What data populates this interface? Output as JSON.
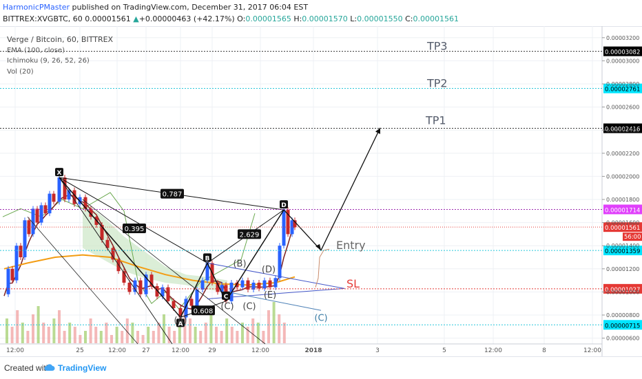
{
  "header": {
    "author": "HarmonicPMaster",
    "published": " published on TradingView.com, December 31, 2017 06:04 EST",
    "symbol": "BITTREX:XVGBTC, 60",
    "last": "0.00001561",
    "change": "+0.00000463 (+42.17%)",
    "o_label": "O:",
    "o": "0.00001565",
    "h_label": "H:",
    "h": "0.00001570",
    "l_label": "L:",
    "l": "0.00001550",
    "c_label": "C:",
    "c": "0.00001561"
  },
  "legend": {
    "title": "Verge / Bitcoin, 60, BITTREX",
    "ema": "EMA (100, close)",
    "ichimoku": "Ichimoku (9, 26, 52, 26)",
    "vol": "Vol (20)"
  },
  "footer": {
    "created": "Created with",
    "brand": "TradingView"
  },
  "colors": {
    "candle_up": "#2962ff",
    "candle_down": "#c62828",
    "ema": "#f39c12",
    "tenkan": "#7b1f1f",
    "chikou": "#6aa84f",
    "cloud": "#cfe8c9",
    "target_line": "#333333",
    "entry_line": "#26c6da",
    "sl_line": "#e53935"
  },
  "chart_data": {
    "type": "line",
    "title": "Verge / Bitcoin, 60, BITTREX",
    "y_ticks": [
      "0.00003200",
      "0.00003000",
      "0.00002800",
      "0.00002600",
      "0.00002400",
      "0.00002200",
      "0.00002000",
      "0.00001800",
      "0.00001600",
      "0.00001400",
      "0.00001200",
      "0.00001000",
      "0.00000800",
      "0.00000600"
    ],
    "x_ticks": [
      "12:00",
      "25",
      "12:00",
      "27",
      "12:00",
      "29",
      "12:00",
      "2018",
      "3",
      "5",
      "12:00",
      "8",
      "12:00"
    ],
    "ylim": [
      5.5e-06,
      3.3e-05
    ],
    "levels": [
      {
        "name": "TP3",
        "price": "0.00003082",
        "value": 3.082e-05,
        "style": "target"
      },
      {
        "name": "TP2",
        "price": "0.00002761",
        "value": 2.761e-05,
        "style": "entry"
      },
      {
        "name": "TP1",
        "price": "0.00002416",
        "value": 2.416e-05,
        "style": "target"
      },
      {
        "name": "",
        "price": "0.00001714",
        "value": 1.714e-05,
        "style": "d"
      },
      {
        "name": "",
        "price": "0.00001561",
        "value": 1.561e-05,
        "style": "last"
      },
      {
        "name": "Entry",
        "price": "0.00001359",
        "value": 1.359e-05,
        "style": "entry"
      },
      {
        "name": "SL",
        "price": "0.00001027",
        "value": 1.027e-05,
        "style": "sl"
      },
      {
        "name": "",
        "price": "0.00000715",
        "value": 7.15e-06,
        "style": "entry"
      }
    ],
    "countdown": "56:00",
    "pattern_points": [
      {
        "label": "X",
        "x": 86,
        "value": 1.99e-05
      },
      {
        "label": "A",
        "x": 262,
        "value": 7.8e-06
      },
      {
        "label": "B",
        "x": 301,
        "value": 1.25e-05
      },
      {
        "label": "C",
        "x": 328,
        "value": 9.2e-06
      },
      {
        "label": "D",
        "x": 412,
        "value": 1.71e-05
      }
    ],
    "ratios": [
      {
        "label": "0.787",
        "x": 250,
        "value": 1.85e-05
      },
      {
        "label": "0.395",
        "x": 195,
        "value": 1.55e-05
      },
      {
        "label": "2.629",
        "x": 362,
        "value": 1.5e-05
      },
      {
        "label": "0.608",
        "x": 295,
        "value": 8.4e-06
      }
    ],
    "wave_labels": [
      {
        "label": "(A)",
        "x": 262,
        "value": 7.3e-06,
        "color": "#444"
      },
      {
        "label": "(B)",
        "x": 348,
        "value": 1.22e-05,
        "color": "#444"
      },
      {
        "label": "(C)",
        "x": 330,
        "value": 8.5e-06,
        "color": "#444"
      },
      {
        "label": "(C)",
        "x": 362,
        "value": 8.5e-06,
        "color": "#444"
      },
      {
        "label": "(D)",
        "x": 390,
        "value": 1.17e-05,
        "color": "#444"
      },
      {
        "label": "(E)",
        "x": 392,
        "value": 9.5e-06,
        "color": "#444"
      },
      {
        "label": "(C)",
        "x": 466,
        "value": 7.5e-06,
        "color": "#3a7ca5"
      }
    ],
    "forecast_path": [
      {
        "x": 412,
        "value": 1.71e-05
      },
      {
        "x": 466,
        "value": 1.36e-05
      },
      {
        "x": 552,
        "value": 2.42e-05
      }
    ],
    "price_series": [
      {
        "x": 6,
        "value": 9.8e-06
      },
      {
        "x": 12,
        "value": 1.2e-05
      },
      {
        "x": 18,
        "value": 1.1e-05
      },
      {
        "x": 24,
        "value": 1.4e-05
      },
      {
        "x": 30,
        "value": 1.3e-05
      },
      {
        "x": 36,
        "value": 1.62e-05
      },
      {
        "x": 42,
        "value": 1.5e-05
      },
      {
        "x": 48,
        "value": 1.72e-05
      },
      {
        "x": 54,
        "value": 1.6e-05
      },
      {
        "x": 60,
        "value": 1.75e-05
      },
      {
        "x": 66,
        "value": 1.68e-05
      },
      {
        "x": 72,
        "value": 1.85e-05
      },
      {
        "x": 78,
        "value": 1.78e-05
      },
      {
        "x": 86,
        "value": 1.99e-05
      },
      {
        "x": 94,
        "value": 1.8e-05
      },
      {
        "x": 100,
        "value": 1.88e-05
      },
      {
        "x": 108,
        "value": 1.76e-05
      },
      {
        "x": 116,
        "value": 1.82e-05
      },
      {
        "x": 124,
        "value": 1.72e-05
      },
      {
        "x": 132,
        "value": 1.65e-05
      },
      {
        "x": 140,
        "value": 1.58e-05
      },
      {
        "x": 148,
        "value": 1.45e-05
      },
      {
        "x": 156,
        "value": 1.38e-05
      },
      {
        "x": 164,
        "value": 1.28e-05
      },
      {
        "x": 172,
        "value": 1.18e-05
      },
      {
        "x": 180,
        "value": 1.08e-05
      },
      {
        "x": 188,
        "value": 1e-05
      },
      {
        "x": 196,
        "value": 1.1e-05
      },
      {
        "x": 204,
        "value": 9.8e-06
      },
      {
        "x": 212,
        "value": 1.15e-05
      },
      {
        "x": 220,
        "value": 1.05e-05
      },
      {
        "x": 228,
        "value": 9.6e-06
      },
      {
        "x": 236,
        "value": 1.04e-05
      },
      {
        "x": 244,
        "value": 9.2e-06
      },
      {
        "x": 252,
        "value": 8.6e-06
      },
      {
        "x": 262,
        "value": 7.8e-06
      },
      {
        "x": 270,
        "value": 9.4e-06
      },
      {
        "x": 278,
        "value": 8.8e-06
      },
      {
        "x": 286,
        "value": 1.02e-05
      },
      {
        "x": 294,
        "value": 1.1e-05
      },
      {
        "x": 301,
        "value": 1.25e-05
      },
      {
        "x": 308,
        "value": 1.08e-05
      },
      {
        "x": 316,
        "value": 1e-05
      },
      {
        "x": 322,
        "value": 1.06e-05
      },
      {
        "x": 328,
        "value": 9.2e-06
      },
      {
        "x": 336,
        "value": 1.08e-05
      },
      {
        "x": 344,
        "value": 1.04e-05
      },
      {
        "x": 352,
        "value": 1.1e-05
      },
      {
        "x": 360,
        "value": 1.02e-05
      },
      {
        "x": 368,
        "value": 1.08e-05
      },
      {
        "x": 376,
        "value": 1.03e-05
      },
      {
        "x": 384,
        "value": 1.1e-05
      },
      {
        "x": 392,
        "value": 1.04e-05
      },
      {
        "x": 400,
        "value": 1.12e-05
      },
      {
        "x": 406,
        "value": 1.4e-05
      },
      {
        "x": 412,
        "value": 1.71e-05
      },
      {
        "x": 418,
        "value": 1.5e-05
      },
      {
        "x": 424,
        "value": 1.62e-05
      },
      {
        "x": 428,
        "value": 1.56e-05
      }
    ],
    "ema_series": [
      {
        "x": 6,
        "value": 1.2e-05
      },
      {
        "x": 40,
        "value": 1.25e-05
      },
      {
        "x": 80,
        "value": 1.3e-05
      },
      {
        "x": 120,
        "value": 1.32e-05
      },
      {
        "x": 160,
        "value": 1.3e-05
      },
      {
        "x": 200,
        "value": 1.22e-05
      },
      {
        "x": 240,
        "value": 1.15e-05
      },
      {
        "x": 280,
        "value": 1.1e-05
      },
      {
        "x": 320,
        "value": 1.07e-05
      },
      {
        "x": 360,
        "value": 1.06e-05
      },
      {
        "x": 400,
        "value": 1.08e-05
      },
      {
        "x": 428,
        "value": 1.13e-05
      }
    ],
    "volume": [
      0.6,
      0.4,
      0.8,
      0.5,
      0.3,
      0.7,
      0.9,
      0.5,
      0.4,
      0.6,
      0.8,
      0.3,
      0.5,
      0.4,
      0.2,
      0.3,
      0.6,
      0.4,
      0.3,
      0.5,
      0.2,
      0.4,
      0.3,
      0.6,
      0.5,
      0.3,
      0.2,
      0.4,
      0.3,
      0.5,
      0.7,
      0.4,
      0.3,
      0.5,
      0.8,
      0.6,
      0.4,
      0.3,
      0.5,
      0.7,
      0.4,
      0.3,
      0.6,
      0.4,
      0.3,
      0.5,
      0.4,
      0.6,
      0.5,
      0.3,
      0.8,
      1.0,
      0.7,
      0.5
    ]
  }
}
